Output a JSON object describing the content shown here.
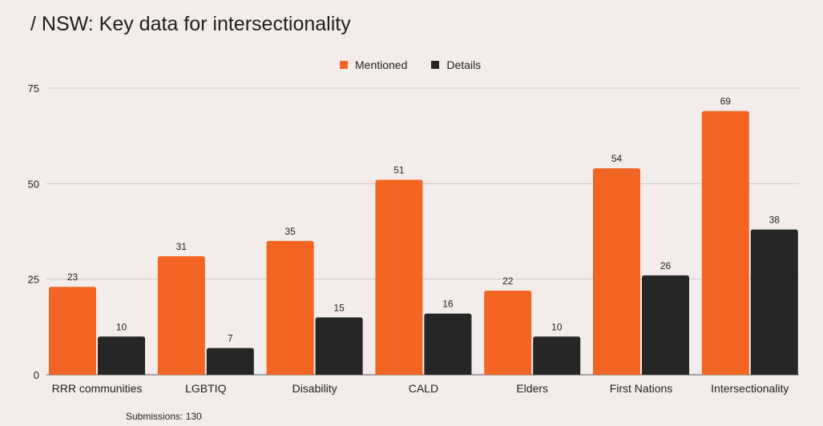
{
  "chart_data": {
    "type": "bar",
    "title": "/ NSW: Key data for intersectionality",
    "categories": [
      "RRR communities",
      "LGBTIQ",
      "Disability",
      "CALD",
      "Elders",
      "First Nations",
      "Intersectionality"
    ],
    "series": [
      {
        "name": "Mentioned",
        "color": "#f26522",
        "values": [
          23,
          31,
          35,
          51,
          22,
          54,
          69
        ]
      },
      {
        "name": "Details",
        "color": "#262626",
        "values": [
          10,
          7,
          15,
          16,
          10,
          26,
          38
        ]
      }
    ],
    "ylim": [
      0,
      75
    ],
    "yticks": [
      0,
      25,
      50,
      75
    ],
    "grid": true,
    "legend_position": "top-center",
    "footnote": "Submissions: 130"
  }
}
